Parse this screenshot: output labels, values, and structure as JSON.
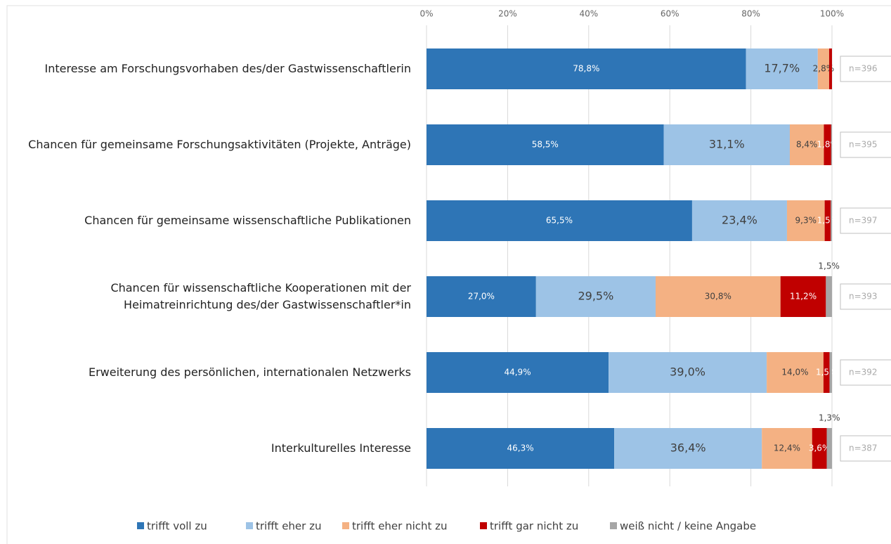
{
  "chart_data": {
    "type": "bar",
    "orientation": "horizontal",
    "stacked": true,
    "categories": [
      "Interesse am Forschungsvorhaben des/der Gastwissenschaftlerin",
      "Chancen für gemeinsame Forschungsaktivitäten (Projekte, Anträge)",
      "Chancen für gemeinsame wissenschaftliche Publikationen",
      "Chancen für wissenschaftliche Kooperationen mit der\nHeimatreinrichtung des/der Gastwissenschaftler*in",
      "Erweiterung des persönlichen, internationalen Netzwerks",
      "Interkulturelles Interesse"
    ],
    "n_labels": [
      "n=396",
      "n=395",
      "n=397",
      "n=393",
      "n=392",
      "n=387"
    ],
    "series": [
      {
        "name": "trifft voll zu",
        "color": "#2e75b6",
        "values": [
          78.8,
          58.5,
          65.5,
          27.0,
          44.9,
          46.3
        ],
        "value_labels": [
          "78,8%",
          "58,5%",
          "65,5%",
          "27,0%",
          "44,9%",
          "46,3%"
        ]
      },
      {
        "name": "trifft eher zu",
        "color": "#9dc3e6",
        "values": [
          17.7,
          31.1,
          23.4,
          29.5,
          39.0,
          36.4
        ],
        "value_labels": [
          "17,7%",
          "31,1%",
          "23,4%",
          "29,5%",
          "39,0%",
          "36,4%"
        ]
      },
      {
        "name": "trifft eher nicht zu",
        "color": "#f4b183",
        "values": [
          2.8,
          8.4,
          9.3,
          30.8,
          14.0,
          12.4
        ],
        "value_labels": [
          "2,8%",
          "8,4%",
          "9,3%",
          "30,8%",
          "14,0%",
          "12,4%"
        ]
      },
      {
        "name": "trifft gar nicht zu",
        "color": "#c00000",
        "values": [
          0.7,
          1.8,
          1.5,
          11.2,
          1.5,
          3.6
        ],
        "value_labels": [
          null,
          "1,8%",
          "1,5%",
          "11,2%",
          "1,5%",
          "3,6%"
        ]
      },
      {
        "name": "weiß nicht / keine Angabe",
        "color": "#a6a6a6",
        "values": [
          0,
          0.2,
          0.3,
          1.5,
          0.6,
          1.3
        ],
        "value_labels": [
          null,
          null,
          null,
          "1,5%",
          null,
          "1,3%"
        ]
      }
    ],
    "xlim": [
      0,
      100
    ],
    "xticks": [
      {
        "value": 0,
        "label": "0%"
      },
      {
        "value": 20,
        "label": "20%"
      },
      {
        "value": 40,
        "label": "40%"
      },
      {
        "value": 60,
        "label": "60%"
      },
      {
        "value": 80,
        "label": "80%"
      },
      {
        "value": 100,
        "label": "100%"
      }
    ],
    "grid": true,
    "legend": "bottom"
  }
}
